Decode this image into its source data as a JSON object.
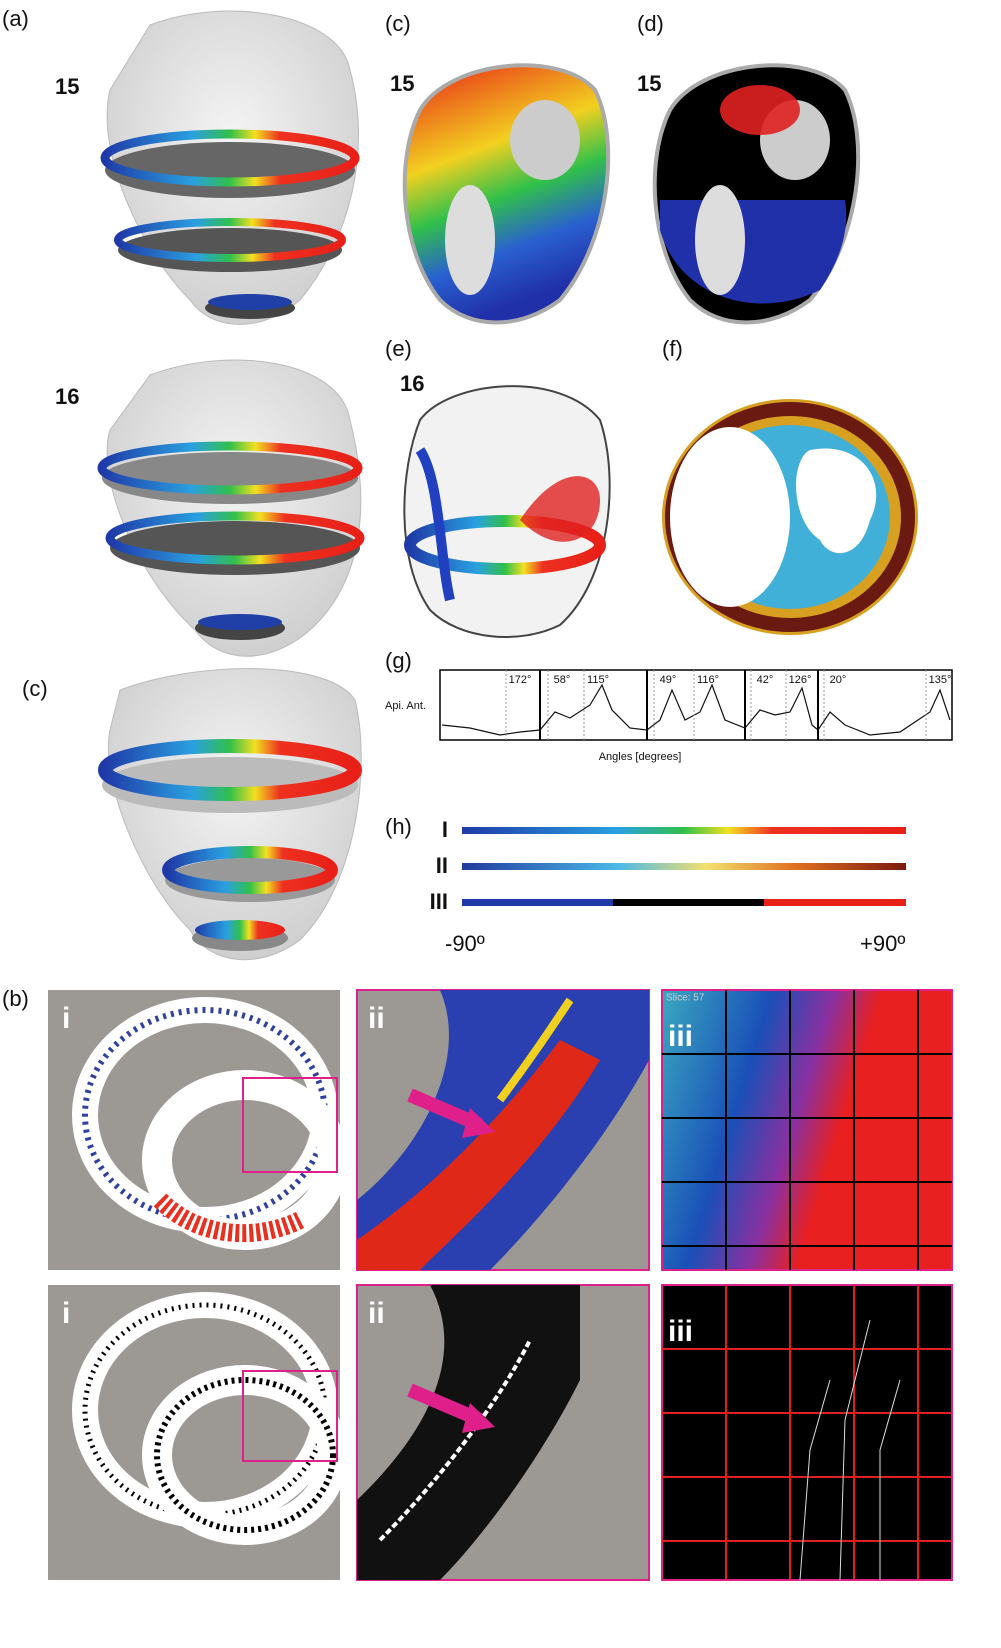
{
  "panel_a": {
    "label": "(a)",
    "numbers": [
      "15",
      "16"
    ]
  },
  "panel_a_lower": {
    "label": "(c)"
  },
  "panel_c": {
    "label": "(c)",
    "number": "15"
  },
  "panel_d": {
    "label": "(d)",
    "number": "15"
  },
  "panel_e": {
    "label": "(e)",
    "number": "16"
  },
  "panel_f": {
    "label": "(f)"
  },
  "panel_g": {
    "label": "(g)",
    "y_label": "Api. Ant.",
    "x_label": "Angles [degrees]",
    "angles": [
      "172°",
      "58°",
      "115°",
      "49°",
      "116°",
      "42°",
      "126°",
      "20°",
      "135°"
    ]
  },
  "panel_h": {
    "label": "(h)",
    "rows": [
      "I",
      "II",
      "III"
    ],
    "min_label": "-90º",
    "max_label": "+90º"
  },
  "panel_b": {
    "label": "(b)",
    "rows": [
      [
        "i",
        "ii",
        "iii"
      ],
      [
        "i",
        "ii",
        "iii"
      ]
    ],
    "slice_label": "Slice: 57"
  }
}
